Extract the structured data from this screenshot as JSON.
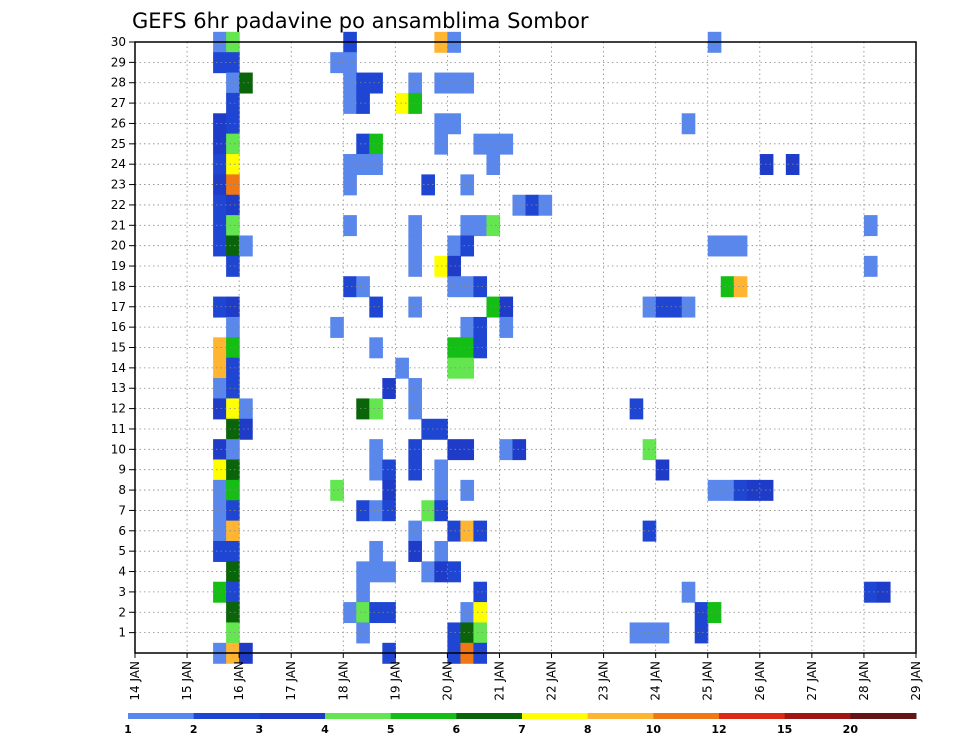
{
  "chart_data": {
    "type": "heatmap",
    "title": "GEFS 6hr padavine po ansamblima Sombor",
    "xlabel": "",
    "ylabel": "",
    "x_ticks": [
      "14 JAN",
      "15 JAN",
      "16 JAN",
      "17 JAN",
      "18 JAN",
      "19 JAN",
      "20 JAN",
      "21 JAN",
      "22 JAN",
      "23 JAN",
      "24 JAN",
      "25 JAN",
      "26 JAN",
      "27 JAN",
      "28 JAN",
      "29 JAN"
    ],
    "y_ticks": [
      "1",
      "2",
      "3",
      "4",
      "5",
      "6",
      "7",
      "8",
      "9",
      "10",
      "11",
      "12",
      "13",
      "14",
      "15",
      "16",
      "17",
      "18",
      "19",
      "20",
      "21",
      "22",
      "23",
      "24",
      "25",
      "26",
      "27",
      "28",
      "29",
      "30"
    ],
    "grid": true,
    "colorbar": {
      "labels": [
        "1",
        "2",
        "3",
        "4",
        "5",
        "6",
        "7",
        "8",
        "10",
        "12",
        "15",
        "20"
      ],
      "colors": [
        "#b4c8f5",
        "#5a87eb",
        "#1e46d2",
        "#1e3cc8",
        "#64e650",
        "#14be14",
        "#0a640a",
        "#ffff00",
        "#ffb432",
        "#f07814",
        "#dc2814",
        "#a01414",
        "#641414"
      ]
    },
    "cells": [
      [
        30,
        15.5,
        1
      ],
      [
        30,
        15.75,
        4
      ],
      [
        30,
        18,
        2
      ],
      [
        30,
        19.75,
        8
      ],
      [
        30,
        20,
        1
      ],
      [
        30,
        25,
        1
      ],
      [
        29,
        15.5,
        2
      ],
      [
        29,
        15.75,
        2
      ],
      [
        29,
        17.75,
        1
      ],
      [
        29,
        18,
        1
      ],
      [
        28,
        15.75,
        1
      ],
      [
        28,
        16,
        6
      ],
      [
        28,
        18,
        1
      ],
      [
        28,
        18.25,
        2
      ],
      [
        28,
        18.5,
        2
      ],
      [
        28,
        19.25,
        1
      ],
      [
        28,
        19.75,
        1
      ],
      [
        28,
        20,
        1
      ],
      [
        28,
        20.25,
        1
      ],
      [
        27,
        15.75,
        2
      ],
      [
        27,
        18,
        1
      ],
      [
        27,
        18.25,
        2
      ],
      [
        27,
        19,
        7
      ],
      [
        27,
        19.25,
        5
      ],
      [
        26,
        15.5,
        3
      ],
      [
        26,
        15.75,
        2
      ],
      [
        26,
        19.75,
        1
      ],
      [
        26,
        20,
        1
      ],
      [
        26,
        24.5,
        1
      ],
      [
        25,
        15.5,
        3
      ],
      [
        25,
        15.75,
        4
      ],
      [
        25,
        18.25,
        2
      ],
      [
        25,
        18.5,
        5
      ],
      [
        25,
        19.75,
        1
      ],
      [
        25,
        20.5,
        1
      ],
      [
        25,
        20.75,
        1
      ],
      [
        25,
        21,
        1
      ],
      [
        24,
        15.5,
        2
      ],
      [
        24,
        15.75,
        7
      ],
      [
        24,
        18,
        1
      ],
      [
        24,
        18.25,
        1
      ],
      [
        24,
        18.5,
        1
      ],
      [
        24,
        20.75,
        1
      ],
      [
        24,
        26,
        3
      ],
      [
        24,
        26.5,
        3
      ],
      [
        23,
        15.5,
        3
      ],
      [
        23,
        15.75,
        9
      ],
      [
        23,
        18,
        1
      ],
      [
        23,
        19.5,
        2
      ],
      [
        23,
        20.25,
        1
      ],
      [
        22,
        15.5,
        2
      ],
      [
        22,
        15.75,
        3
      ],
      [
        22,
        21.25,
        1
      ],
      [
        22,
        21.5,
        2
      ],
      [
        22,
        21.75,
        1
      ],
      [
        21,
        15.5,
        2
      ],
      [
        21,
        15.75,
        4
      ],
      [
        21,
        18,
        1
      ],
      [
        21,
        19.25,
        1
      ],
      [
        21,
        20.25,
        1
      ],
      [
        21,
        20.5,
        1
      ],
      [
        21,
        20.75,
        4
      ],
      [
        21,
        28,
        1
      ],
      [
        20,
        15.5,
        2
      ],
      [
        20,
        15.75,
        6
      ],
      [
        20,
        16,
        1
      ],
      [
        20,
        19.25,
        1
      ],
      [
        20,
        20,
        1
      ],
      [
        20,
        20.25,
        2
      ],
      [
        20,
        25,
        1
      ],
      [
        20,
        25.25,
        1
      ],
      [
        20,
        25.5,
        1
      ],
      [
        19,
        15.75,
        2
      ],
      [
        19,
        19.25,
        1
      ],
      [
        19,
        19.75,
        7
      ],
      [
        19,
        20,
        3
      ],
      [
        19,
        28,
        1
      ],
      [
        18,
        18,
        2
      ],
      [
        18,
        18.25,
        1
      ],
      [
        18,
        20,
        1
      ],
      [
        18,
        20.25,
        1
      ],
      [
        18,
        20.5,
        2
      ],
      [
        18,
        25.25,
        5
      ],
      [
        18,
        25.5,
        8
      ],
      [
        17,
        15.5,
        2
      ],
      [
        17,
        15.75,
        3
      ],
      [
        17,
        18.5,
        2
      ],
      [
        17,
        19.25,
        1
      ],
      [
        17,
        20.75,
        5
      ],
      [
        17,
        21,
        3
      ],
      [
        17,
        23.75,
        1
      ],
      [
        17,
        24,
        2
      ],
      [
        17,
        24.25,
        2
      ],
      [
        17,
        24.5,
        1
      ],
      [
        16,
        15.75,
        1
      ],
      [
        16,
        17.75,
        1
      ],
      [
        16,
        20.25,
        1
      ],
      [
        16,
        20.5,
        2
      ],
      [
        16,
        21,
        1
      ],
      [
        15,
        15.5,
        8
      ],
      [
        15,
        15.75,
        5
      ],
      [
        15,
        18.5,
        1
      ],
      [
        15,
        20,
        5
      ],
      [
        15,
        20.25,
        5
      ],
      [
        15,
        20.5,
        2
      ],
      [
        14,
        15.5,
        8
      ],
      [
        14,
        15.75,
        2
      ],
      [
        14,
        19,
        1
      ],
      [
        14,
        20,
        4
      ],
      [
        14,
        20.25,
        4
      ],
      [
        13,
        15.5,
        1
      ],
      [
        13,
        15.75,
        2
      ],
      [
        13,
        18.75,
        3
      ],
      [
        13,
        19.25,
        1
      ],
      [
        12,
        15.5,
        3
      ],
      [
        12,
        15.75,
        7
      ],
      [
        12,
        16,
        1
      ],
      [
        12,
        18.25,
        6
      ],
      [
        12,
        18.5,
        4
      ],
      [
        12,
        19.25,
        1
      ],
      [
        12,
        23.5,
        2
      ],
      [
        11,
        15.75,
        6
      ],
      [
        11,
        16,
        3
      ],
      [
        11,
        19.5,
        2
      ],
      [
        11,
        19.75,
        2
      ],
      [
        10,
        15.5,
        3
      ],
      [
        10,
        15.75,
        1
      ],
      [
        10,
        18.5,
        1
      ],
      [
        10,
        19.25,
        2
      ],
      [
        10,
        20,
        3
      ],
      [
        10,
        20.25,
        3
      ],
      [
        10,
        21,
        1
      ],
      [
        10,
        21.25,
        3
      ],
      [
        10,
        23.75,
        4
      ],
      [
        9,
        15.5,
        7
      ],
      [
        9,
        15.75,
        6
      ],
      [
        9,
        18.5,
        1
      ],
      [
        9,
        18.75,
        2
      ],
      [
        9,
        19.25,
        2
      ],
      [
        9,
        19.75,
        1
      ],
      [
        9,
        24,
        3
      ],
      [
        8,
        15.5,
        1
      ],
      [
        8,
        15.75,
        5
      ],
      [
        8,
        17.75,
        4
      ],
      [
        8,
        18.75,
        3
      ],
      [
        8,
        19.75,
        1
      ],
      [
        8,
        20.25,
        1
      ],
      [
        8,
        25,
        1
      ],
      [
        8,
        25.25,
        1
      ],
      [
        8,
        25.5,
        2
      ],
      [
        8,
        25.75,
        3
      ],
      [
        8,
        26,
        3
      ],
      [
        7,
        15.5,
        1
      ],
      [
        7,
        15.75,
        2
      ],
      [
        7,
        18.25,
        2
      ],
      [
        7,
        18.5,
        1
      ],
      [
        7,
        18.75,
        2
      ],
      [
        7,
        19.5,
        4
      ],
      [
        7,
        19.75,
        2
      ],
      [
        6,
        15.5,
        1
      ],
      [
        6,
        15.75,
        8
      ],
      [
        6,
        19.25,
        1
      ],
      [
        6,
        20,
        2
      ],
      [
        6,
        20.25,
        8
      ],
      [
        6,
        20.5,
        2
      ],
      [
        6,
        23.75,
        2
      ],
      [
        5,
        15.5,
        2
      ],
      [
        5,
        15.75,
        2
      ],
      [
        5,
        18.5,
        1
      ],
      [
        5,
        19.25,
        3
      ],
      [
        5,
        19.75,
        1
      ],
      [
        4,
        15.75,
        6
      ],
      [
        4,
        18.25,
        1
      ],
      [
        4,
        18.5,
        1
      ],
      [
        4,
        18.75,
        1
      ],
      [
        4,
        19.5,
        1
      ],
      [
        4,
        19.75,
        3
      ],
      [
        4,
        20,
        2
      ],
      [
        3,
        15.5,
        5
      ],
      [
        3,
        15.75,
        2
      ],
      [
        3,
        18.25,
        1
      ],
      [
        3,
        20.5,
        2
      ],
      [
        3,
        24.5,
        1
      ],
      [
        3,
        28,
        2
      ],
      [
        3,
        28.25,
        3
      ],
      [
        2,
        15.75,
        6
      ],
      [
        2,
        18,
        1
      ],
      [
        2,
        18.25,
        4
      ],
      [
        2,
        18.5,
        2
      ],
      [
        2,
        18.75,
        2
      ],
      [
        2,
        20.25,
        1
      ],
      [
        2,
        20.5,
        7
      ],
      [
        2,
        24.75,
        2
      ],
      [
        2,
        25,
        5
      ],
      [
        1,
        15.75,
        4
      ],
      [
        1,
        18.25,
        1
      ],
      [
        1,
        20,
        2
      ],
      [
        1,
        20.25,
        6
      ],
      [
        1,
        20.5,
        4
      ],
      [
        1,
        23.5,
        1
      ],
      [
        1,
        23.75,
        1
      ],
      [
        1,
        24,
        1
      ],
      [
        1,
        24.75,
        2
      ],
      [
        0,
        15.5,
        1
      ],
      [
        0,
        15.75,
        8
      ],
      [
        0,
        16,
        3
      ],
      [
        0,
        18.75,
        2
      ],
      [
        0,
        20,
        2
      ],
      [
        0,
        20.25,
        9
      ],
      [
        0,
        20.5,
        2
      ]
    ]
  }
}
